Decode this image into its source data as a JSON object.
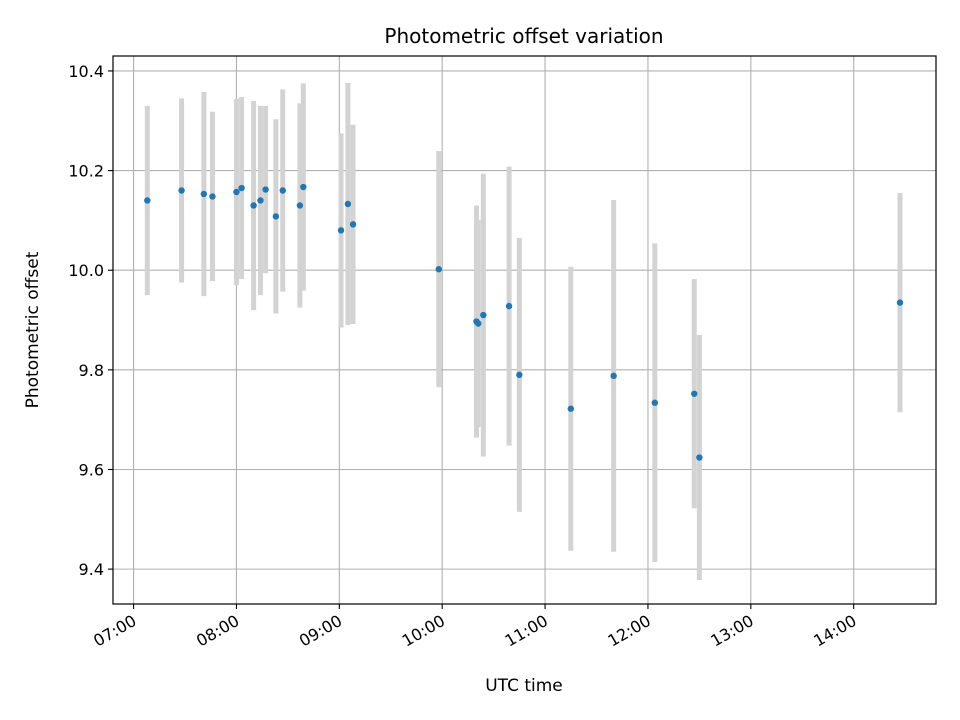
{
  "chart_data": {
    "type": "scatter",
    "title": "Photometric offset variation",
    "xlabel": "UTC time",
    "ylabel": "Photometric offset",
    "x_tick_labels": [
      "07:00",
      "08:00",
      "09:00",
      "10:00",
      "11:00",
      "12:00",
      "13:00",
      "14:00"
    ],
    "y_tick_labels": [
      "9.4",
      "9.6",
      "9.8",
      "10.0",
      "10.2",
      "10.4"
    ],
    "y_ticks": [
      9.4,
      9.6,
      9.8,
      10.0,
      10.2,
      10.4
    ],
    "xlim": [
      "06:48",
      "14:48"
    ],
    "ylim": [
      9.33,
      10.43
    ],
    "grid": true,
    "point_color": "#1f77b4",
    "errorbar_color": "#d3d3d3",
    "series": [
      {
        "points": [
          {
            "x": "07:08",
            "y": 10.14,
            "err": 0.19
          },
          {
            "x": "07:28",
            "y": 10.16,
            "err": 0.185
          },
          {
            "x": "07:41",
            "y": 10.153,
            "err": 0.205
          },
          {
            "x": "07:46",
            "y": 10.148,
            "err": 0.17
          },
          {
            "x": "08:00",
            "y": 10.157,
            "err": 0.187
          },
          {
            "x": "08:03",
            "y": 10.165,
            "err": 0.183
          },
          {
            "x": "08:10",
            "y": 10.13,
            "err": 0.21
          },
          {
            "x": "08:14",
            "y": 10.14,
            "err": 0.19
          },
          {
            "x": "08:17",
            "y": 10.162,
            "err": 0.168
          },
          {
            "x": "08:23",
            "y": 10.108,
            "err": 0.195
          },
          {
            "x": "08:27",
            "y": 10.16,
            "err": 0.203
          },
          {
            "x": "08:37",
            "y": 10.13,
            "err": 0.205
          },
          {
            "x": "08:39",
            "y": 10.167,
            "err": 0.208
          },
          {
            "x": "09:01",
            "y": 10.08,
            "err": 0.195
          },
          {
            "x": "09:05",
            "y": 10.133,
            "err": 0.243
          },
          {
            "x": "09:08",
            "y": 10.092,
            "err": 0.2
          },
          {
            "x": "09:58",
            "y": 10.002,
            "err": 0.237
          },
          {
            "x": "10:20",
            "y": 9.897,
            "err": 0.233
          },
          {
            "x": "10:21",
            "y": 9.893,
            "err": 0.208
          },
          {
            "x": "10:24",
            "y": 9.91,
            "err": 0.284
          },
          {
            "x": "10:39",
            "y": 9.928,
            "err": 0.28
          },
          {
            "x": "10:45",
            "y": 9.79,
            "err": 0.275
          },
          {
            "x": "11:15",
            "y": 9.722,
            "err": 0.285
          },
          {
            "x": "11:40",
            "y": 9.788,
            "err": 0.353
          },
          {
            "x": "12:04",
            "y": 9.734,
            "err": 0.32
          },
          {
            "x": "12:27",
            "y": 9.752,
            "err": 0.23
          },
          {
            "x": "12:30",
            "y": 9.624,
            "err": 0.246
          },
          {
            "x": "14:27",
            "y": 9.935,
            "err": 0.22
          }
        ]
      }
    ]
  }
}
